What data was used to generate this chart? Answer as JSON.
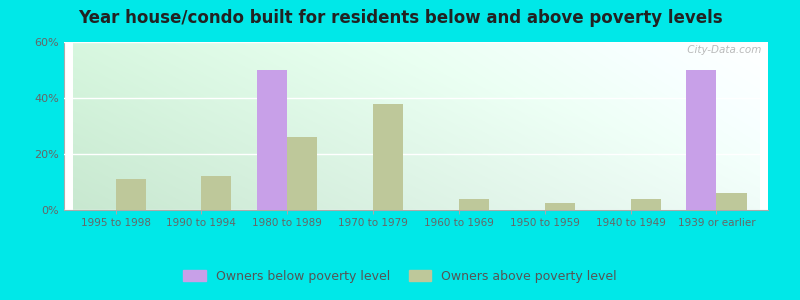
{
  "title": "Year house/condo built for residents below and above poverty levels",
  "categories": [
    "1995 to 1998",
    "1990 to 1994",
    "1980 to 1989",
    "1970 to 1979",
    "1960 to 1969",
    "1950 to 1959",
    "1940 to 1949",
    "1939 or earlier"
  ],
  "below_poverty": [
    0,
    0,
    50,
    0,
    0,
    0,
    0,
    50
  ],
  "above_poverty": [
    11,
    12,
    26,
    38,
    4,
    2.5,
    4,
    6
  ],
  "below_color": "#c8a0e8",
  "above_color": "#bec89a",
  "ylim": [
    0,
    60
  ],
  "yticks": [
    0,
    20,
    40,
    60
  ],
  "ytick_labels": [
    "0%",
    "20%",
    "40%",
    "60%"
  ],
  "outer_background": "#00e8e8",
  "legend_below_label": "Owners below poverty level",
  "legend_above_label": "Owners above poverty level",
  "watermark": " City-Data.com",
  "bar_width": 0.35,
  "title_fontsize": 12,
  "tick_fontsize": 7.5,
  "legend_fontsize": 9
}
